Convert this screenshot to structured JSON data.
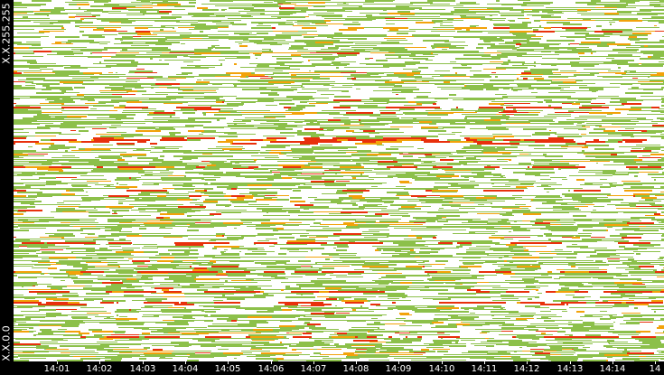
{
  "chart_data": {
    "type": "heatmap",
    "title": "",
    "xlabel": "",
    "ylabel": "",
    "y_axis": {
      "top_label": "X.X.255.255",
      "bottom_label": "X.X.0.0"
    },
    "x_axis": {
      "tick_labels": [
        "14:01",
        "14:02",
        "14:03",
        "14:04",
        "14:05",
        "14:06",
        "14:07",
        "14:08",
        "14:09",
        "14:10",
        "14:11",
        "14:12",
        "14:13",
        "14:14",
        "14"
      ]
    },
    "colors": {
      "background": "#000000",
      "empty": "#ffffff",
      "low": "#8cc04a",
      "mid": "#f2a20a",
      "high": "#e8300c",
      "text": "#ffffff"
    },
    "heavy_rows": [
      118,
      153,
      157,
      184,
      210,
      268,
      300,
      322,
      335,
      372
    ]
  }
}
